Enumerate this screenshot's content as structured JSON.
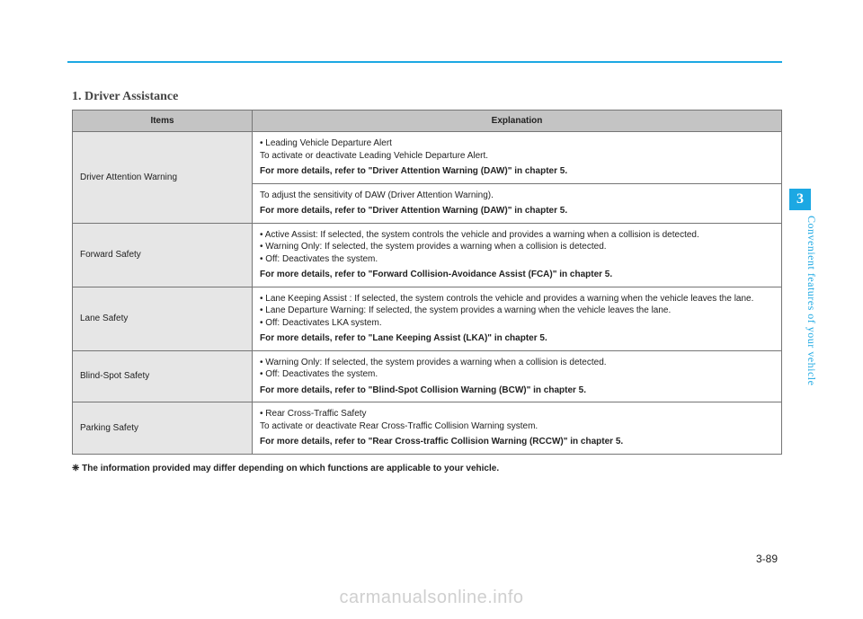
{
  "header_rule_color": "#1ca8e3",
  "section_title": "1. Driver Assistance",
  "table": {
    "header_bg": "#c4c4c4",
    "items_bg": "#e6e6e6",
    "border_color": "#757575",
    "columns": {
      "items": "Items",
      "explanation": "Explanation"
    },
    "rows": [
      {
        "item": "Driver Attention Warning",
        "cells": [
          {
            "bullets": [
              "• Leading Vehicle Departure Alert"
            ],
            "plain": "To activate or deactivate Leading Vehicle Departure Alert.",
            "bold": "For more details, refer to \"Driver Attention Warning (DAW)\" in chapter 5."
          },
          {
            "plain": "To adjust the sensitivity of DAW (Driver Attention Warning).",
            "bold": "For more details, refer to \"Driver Attention Warning (DAW)\" in chapter 5."
          }
        ]
      },
      {
        "item": "Forward Safety",
        "cells": [
          {
            "bullets": [
              "• Active Assist: If selected, the system controls the vehicle and provides a warning when a collision is detected.",
              "• Warning Only: If selected, the system provides a warning when a collision is detected.",
              "• Off: Deactivates the system."
            ],
            "bold": "For more details, refer to \"Forward Collision-Avoidance Assist (FCA)\" in chapter 5."
          }
        ]
      },
      {
        "item": "Lane Safety",
        "cells": [
          {
            "bullets": [
              "• Lane Keeping Assist : If selected, the system controls the vehicle and provides a warning when the vehicle leaves the lane.",
              "• Lane Departure Warning: If selected, the system provides a warning when the vehicle leaves the lane.",
              "• Off: Deactivates LKA system."
            ],
            "bold": "For more details, refer to \"Lane Keeping Assist (LKA)\" in chapter 5."
          }
        ]
      },
      {
        "item": "Blind-Spot Safety",
        "cells": [
          {
            "bullets": [
              "• Warning Only: If selected, the system provides a warning when a collision is detected.",
              "• Off: Deactivates the system."
            ],
            "bold": "For more details, refer to \"Blind-Spot Collision Warning (BCW)\" in chapter 5."
          }
        ]
      },
      {
        "item": "Parking Safety",
        "cells": [
          {
            "bullets": [
              "• Rear Cross-Traffic Safety"
            ],
            "plain": "To activate or deactivate Rear Cross-Traffic Collision Warning system.",
            "bold": "For more details, refer to \"Rear Cross-traffic Collision Warning (RCCW)\" in chapter 5."
          }
        ]
      }
    ]
  },
  "footnote": "❈ The information provided may differ depending on which functions are applicable to your vehicle.",
  "side_tab": "3",
  "side_text": "Convenient features of your vehicle",
  "page_number": "3-89",
  "watermark": "carmanualsonline.info"
}
